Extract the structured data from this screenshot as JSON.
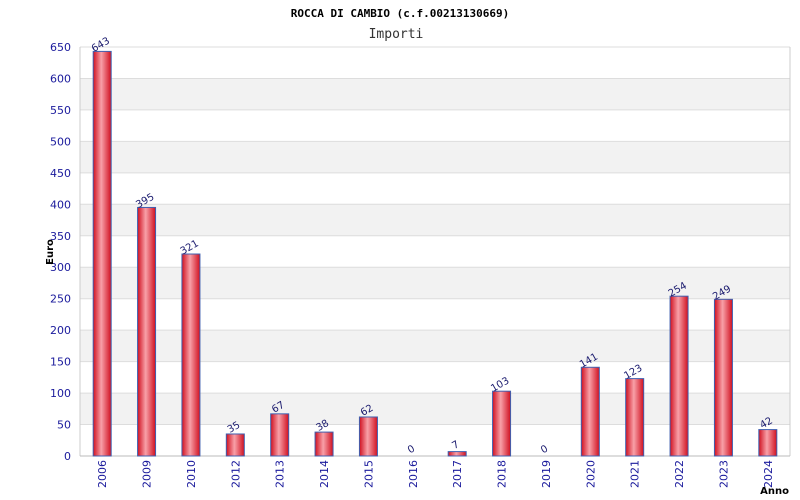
{
  "chart_data": {
    "type": "bar",
    "title": "ROCCA DI CAMBIO (c.f.00213130669)",
    "subtitle": "Importi",
    "ylabel": "Euro",
    "xlabel": "Anno",
    "categories": [
      "2006",
      "2009",
      "2010",
      "2012",
      "2013",
      "2014",
      "2015",
      "2016",
      "2017",
      "2018",
      "2019",
      "2020",
      "2021",
      "2022",
      "2023",
      "2024"
    ],
    "values": [
      643,
      395,
      321,
      35,
      67,
      38,
      62,
      0,
      7,
      103,
      0,
      141,
      123,
      254,
      249,
      42
    ],
    "ylim": [
      0,
      650
    ],
    "yticks": [
      0,
      50,
      100,
      150,
      200,
      250,
      300,
      350,
      400,
      450,
      500,
      550,
      600,
      650
    ],
    "grid": true,
    "colors": {
      "bar_dark": "#d01020",
      "bar_light": "#f8a0a8",
      "bar_border": "#4060b0",
      "band": "#f2f2f2",
      "gridline": "#dddddd",
      "tick_text": "#1a1a9c",
      "label_text": "#1a1a6e"
    }
  }
}
